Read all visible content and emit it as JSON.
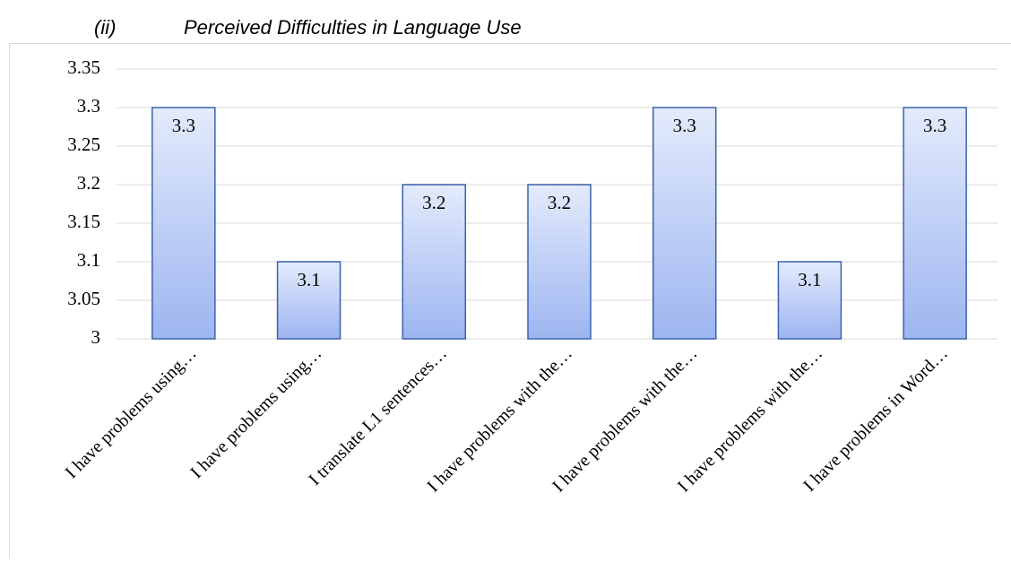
{
  "chart_data": {
    "type": "bar",
    "label": "(ii)",
    "title": "Perceived Difficulties in Language Use",
    "categories": [
      "I have problems using…",
      "I have problems using…",
      "I translate L1 sentences…",
      "I have problems with the…",
      "I have problems with the…",
      "I have problems with the…",
      "I have problems in Word…"
    ],
    "values": [
      3.3,
      3.1,
      3.2,
      3.2,
      3.3,
      3.1,
      3.3
    ],
    "color": "#9db5f0",
    "ylim": [
      3,
      3.35
    ],
    "yticks": [
      3,
      3.05,
      3.1,
      3.15,
      3.2,
      3.25,
      3.3,
      3.35
    ],
    "grid": true
  }
}
